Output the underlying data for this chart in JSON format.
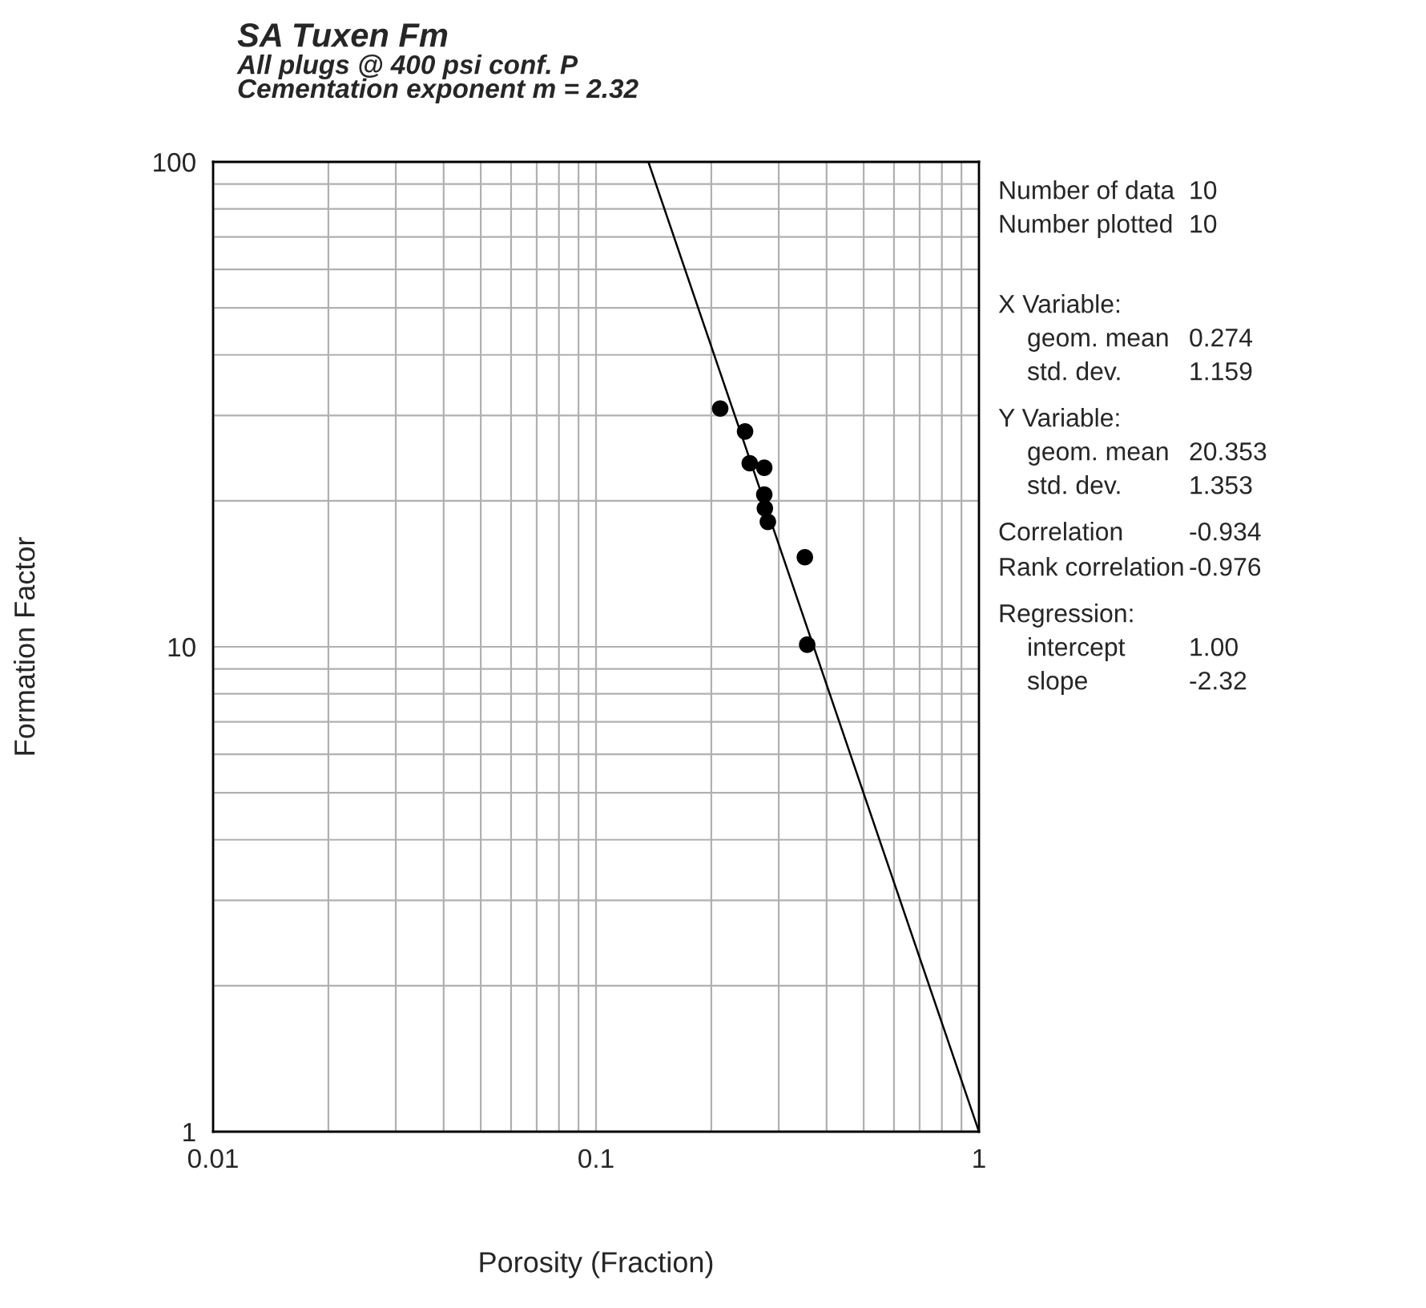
{
  "chart_data": {
    "type": "scatter",
    "title": "SA Tuxen Fm",
    "subtitle": "All plugs @ 400 psi conf. P\nCementation exponent m = 2.32",
    "xlabel": "Porosity (Fraction)",
    "ylabel": "Formation Factor",
    "log": "xy",
    "grid": true,
    "marker": "circle",
    "xlim": [
      0.01,
      1
    ],
    "ylim": [
      1,
      100
    ],
    "xticks": [
      0.01,
      0.1,
      1
    ],
    "yticks": [
      1,
      10,
      100
    ],
    "series": [
      {
        "color": "#000000",
        "x": [
          0.211,
          0.245,
          0.252,
          0.275,
          0.275,
          0.276,
          0.281,
          0.351,
          0.356,
          null
        ],
        "values": [
          31.0,
          27.8,
          23.9,
          23.4,
          20.6,
          19.3,
          18.1,
          15.3,
          10.1,
          null
        ]
      },
      {
        "type": "line",
        "color": "#000000",
        "marker": "none",
        "line_style": "solid",
        "x": [
          0.137,
          1
        ],
        "values": [
          100,
          1
        ]
      }
    ],
    "annotations": [
      "Number of data",
      "10",
      "Number plotted",
      "10",
      "X Variable:",
      "geom. mean",
      "0.274",
      "std. dev.",
      "1.159",
      "Y Variable:",
      "geom. mean",
      "20.353",
      "std. dev.",
      "1.353",
      "Correlation",
      "-0.934",
      "Rank correlation",
      "-0.976",
      "Regression:",
      "intercept",
      "1.00",
      "slope",
      "-2.32"
    ]
  }
}
